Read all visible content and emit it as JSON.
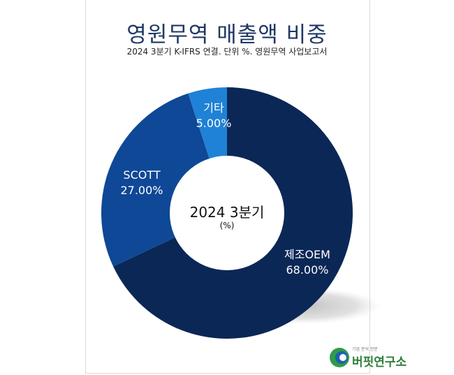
{
  "title": "영원무역 매출액 비중",
  "subtitle": "2024 3분기 K-IFRS 연결. 단위 %. 영원무역 사업보고서",
  "center": {
    "label": "2024 3분기",
    "unit": "(%)"
  },
  "logo": {
    "tagline": "기업 분석 전문",
    "name": "버핏연구소"
  },
  "chart_data": {
    "type": "pie",
    "donut": true,
    "categories": [
      "제조OEM",
      "SCOTT",
      "기타"
    ],
    "values": [
      68.0,
      27.0,
      5.0
    ],
    "value_labels": [
      "68.00%",
      "27.00%",
      "5.00%"
    ],
    "colors": [
      "#0b2756",
      "#0f4896",
      "#1f82d6"
    ]
  }
}
